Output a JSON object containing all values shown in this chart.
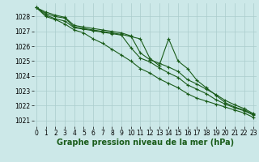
{
  "title": "Graphe pression niveau de la mer (hPa)",
  "x_hours": [
    0,
    1,
    2,
    3,
    4,
    5,
    6,
    7,
    8,
    9,
    10,
    11,
    12,
    13,
    14,
    15,
    16,
    17,
    18,
    19,
    20,
    21,
    22,
    23
  ],
  "series": [
    [
      1028.6,
      1028.2,
      1028.0,
      1027.9,
      1027.3,
      1027.2,
      1027.1,
      1027.0,
      1026.9,
      1026.8,
      1026.65,
      1026.5,
      1025.2,
      1024.7,
      1026.5,
      1025.0,
      1024.5,
      1023.7,
      1023.2,
      1022.7,
      1022.2,
      1021.9,
      1021.7,
      1021.4
    ],
    [
      1028.6,
      1028.1,
      1027.85,
      1027.7,
      1027.25,
      1027.15,
      1027.05,
      1026.95,
      1026.85,
      1026.75,
      1025.9,
      1025.2,
      1024.95,
      1024.55,
      1024.2,
      1023.9,
      1023.4,
      1023.1,
      1022.8,
      1022.4,
      1022.1,
      1021.85,
      1021.65,
      1021.35
    ],
    [
      1028.6,
      1028.3,
      1028.1,
      1027.95,
      1027.4,
      1027.3,
      1027.2,
      1027.1,
      1027.0,
      1026.9,
      1026.7,
      1025.55,
      1025.1,
      1024.85,
      1024.6,
      1024.3,
      1023.75,
      1023.45,
      1023.1,
      1022.75,
      1022.35,
      1022.05,
      1021.8,
      1021.45
    ],
    [
      1028.6,
      1028.0,
      1027.8,
      1027.5,
      1027.1,
      1026.9,
      1026.5,
      1026.2,
      1025.8,
      1025.4,
      1025.0,
      1024.5,
      1024.2,
      1023.8,
      1023.5,
      1023.2,
      1022.8,
      1022.5,
      1022.3,
      1022.1,
      1021.9,
      1021.7,
      1021.5,
      1021.2
    ]
  ],
  "ylim": [
    1020.6,
    1028.9
  ],
  "yticks": [
    1021,
    1022,
    1023,
    1024,
    1025,
    1026,
    1027,
    1028
  ],
  "xlim": [
    -0.3,
    23.3
  ],
  "bg_color": "#cce8e8",
  "grid_color": "#aacccc",
  "line_color": "#1a5c1a",
  "marker": "+",
  "marker_size": 3,
  "marker_edge_width": 0.8,
  "title_fontsize": 7,
  "tick_fontsize": 5.5,
  "line_width": 0.8
}
